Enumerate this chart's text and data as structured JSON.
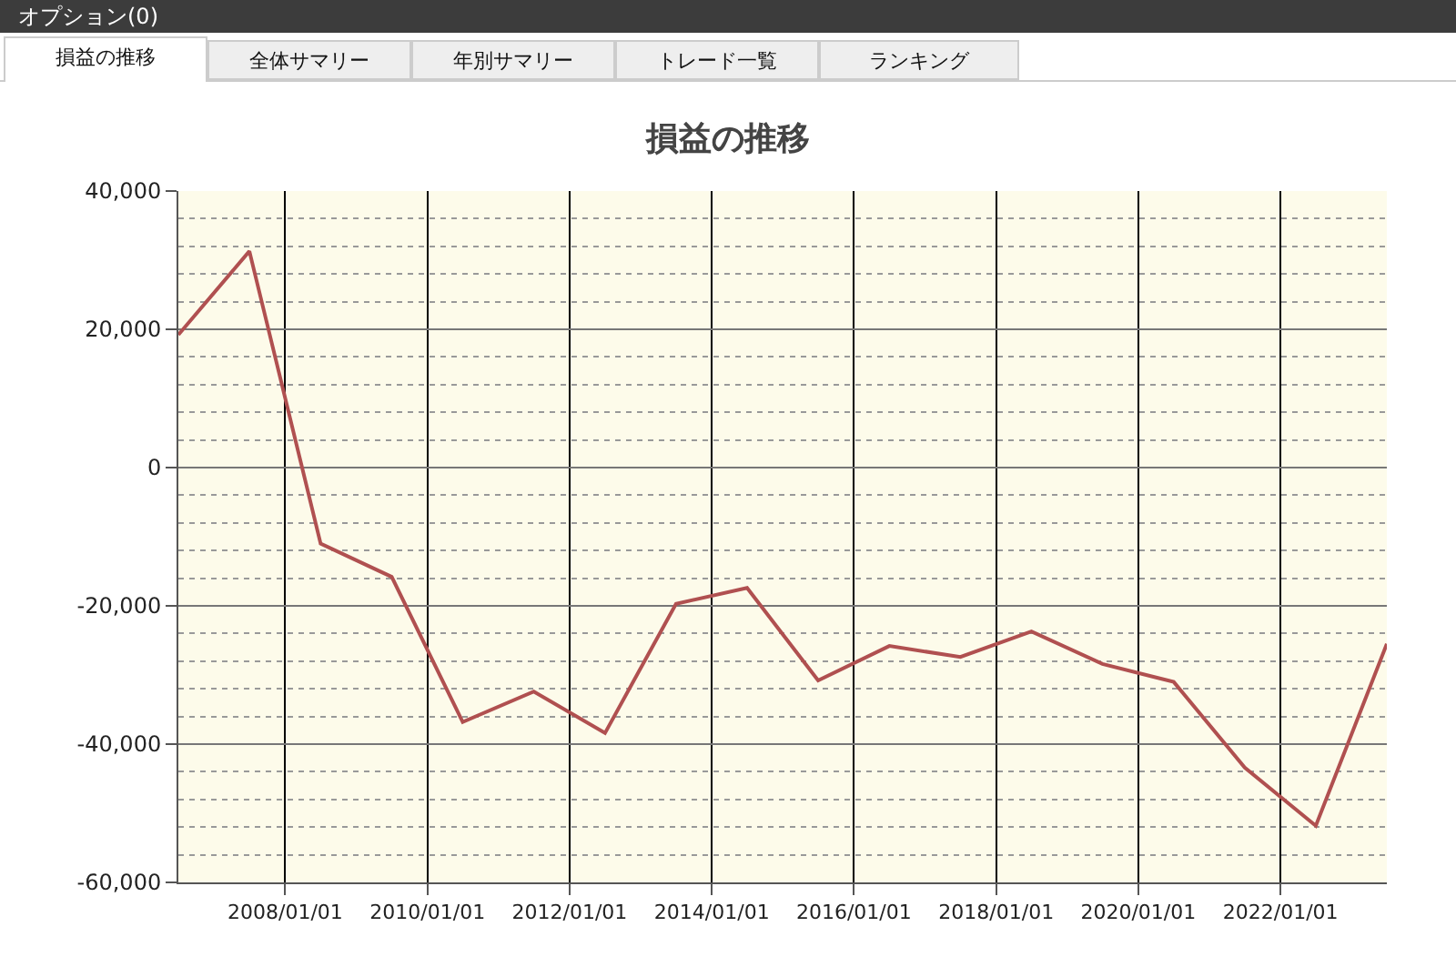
{
  "chart_data": {
    "type": "line",
    "title": "損益の推移",
    "annotations": [
      "オプション(0)",
      "損益の推移",
      "全体サマリー",
      "年別サマリー",
      "トレード一覧",
      "ランキング"
    ],
    "x": [
      "2006-07",
      "2007-07",
      "2008-07",
      "2009-07",
      "2010-07",
      "2011-07",
      "2012-07",
      "2013-07",
      "2014-07",
      "2015-07",
      "2016-07",
      "2017-07",
      "2018-07",
      "2019-07",
      "2020-07",
      "2021-07",
      "2022-07",
      "2023-07"
    ],
    "series": [
      {
        "color": "#b05050",
        "values": [
          19200,
          31300,
          -11000,
          -15800,
          -36800,
          -32400,
          -38400,
          -19700,
          -17400,
          -30800,
          -25800,
          -27400,
          -23700,
          -28400,
          -31000,
          -43400,
          -51800,
          -25500
        ]
      }
    ],
    "xlim": [
      "2006-07",
      "2023-07"
    ],
    "xticks": [
      {
        "value": "2008-01-01",
        "label": "2008/01/01"
      },
      {
        "value": "2010-01-01",
        "label": "2010/01/01"
      },
      {
        "value": "2012-01-01",
        "label": "2012/01/01"
      },
      {
        "value": "2014-01-01",
        "label": "2014/01/01"
      },
      {
        "value": "2016-01-01",
        "label": "2016/01/01"
      },
      {
        "value": "2018-01-01",
        "label": "2018/01/01"
      },
      {
        "value": "2020-01-01",
        "label": "2020/01/01"
      },
      {
        "value": "2022-01-01",
        "label": "2022/01/01"
      }
    ],
    "ylim": [
      -60000,
      40000
    ],
    "yticks": [
      {
        "value": -60000,
        "label": "-60,000"
      },
      {
        "value": -56000,
        "label": null
      },
      {
        "value": -52000,
        "label": null
      },
      {
        "value": -48000,
        "label": null
      },
      {
        "value": -44000,
        "label": null
      },
      {
        "value": -40000,
        "label": "-40,000"
      },
      {
        "value": -36000,
        "label": null
      },
      {
        "value": -32000,
        "label": null
      },
      {
        "value": -28000,
        "label": null
      },
      {
        "value": -24000,
        "label": null
      },
      {
        "value": -20000,
        "label": "-20,000"
      },
      {
        "value": -16000,
        "label": null
      },
      {
        "value": -12000,
        "label": null
      },
      {
        "value": -8000,
        "label": null
      },
      {
        "value": -4000,
        "label": null
      },
      {
        "value": 0,
        "label": "0"
      },
      {
        "value": 4000,
        "label": null
      },
      {
        "value": 8000,
        "label": null
      },
      {
        "value": 12000,
        "label": null
      },
      {
        "value": 16000,
        "label": null
      },
      {
        "value": 20000,
        "label": "20,000"
      },
      {
        "value": 24000,
        "label": null
      },
      {
        "value": 28000,
        "label": null
      },
      {
        "value": 32000,
        "label": null
      },
      {
        "value": 36000,
        "label": null
      },
      {
        "value": 40000,
        "label": "40,000"
      }
    ],
    "grid": true,
    "marker": "none",
    "line_style": "solid"
  }
}
